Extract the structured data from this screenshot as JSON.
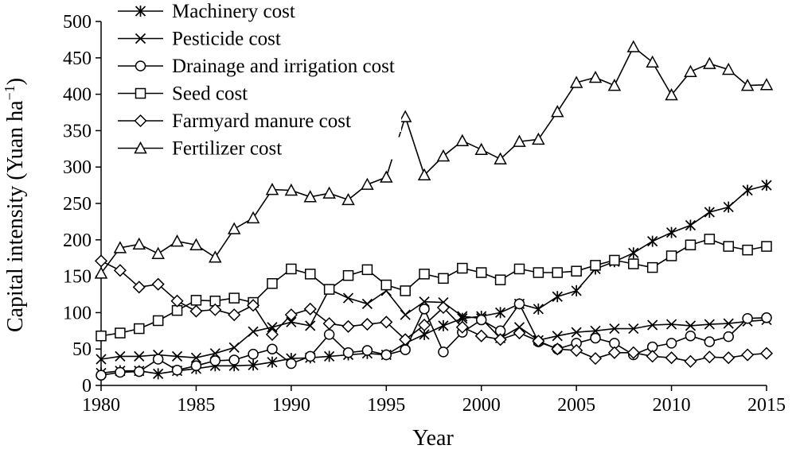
{
  "chart_data": {
    "type": "line",
    "title": "",
    "xlabel": "Year",
    "ylabel": "Capital intensity (Yuan ha",
    "ylabel_sup": "−1",
    "ylabel_close": ")",
    "xlim": [
      1980,
      2015
    ],
    "ylim": [
      0,
      500
    ],
    "xticks": [
      1980,
      1985,
      1990,
      1995,
      2000,
      2005,
      2010,
      2015
    ],
    "yticks": [
      0,
      50,
      100,
      150,
      200,
      250,
      300,
      350,
      400,
      450,
      500
    ],
    "grid": false,
    "legend_position": "top-left",
    "x": [
      1980,
      1981,
      1982,
      1983,
      1984,
      1985,
      1986,
      1987,
      1988,
      1989,
      1990,
      1991,
      1992,
      1993,
      1994,
      1995,
      1996,
      1997,
      1998,
      1999,
      2000,
      2001,
      2002,
      2003,
      2004,
      2005,
      2006,
      2007,
      2008,
      2009,
      2010,
      2011,
      2012,
      2013,
      2014,
      2015
    ],
    "series": [
      {
        "name": "Machinery cost",
        "marker": "asterisk",
        "values": [
          17,
          20,
          20,
          16,
          20,
          23,
          27,
          27,
          28,
          32,
          37,
          38,
          40,
          42,
          44,
          42,
          58,
          70,
          82,
          92,
          95,
          100,
          112,
          105,
          122,
          130,
          160,
          170,
          182,
          198,
          210,
          220,
          238,
          245,
          268,
          275
        ]
      },
      {
        "name": "Pesticide cost",
        "marker": "x",
        "values": [
          36,
          40,
          40,
          42,
          40,
          38,
          44,
          52,
          74,
          80,
          87,
          82,
          132,
          120,
          112,
          130,
          97,
          115,
          114,
          95,
          92,
          65,
          80,
          62,
          68,
          73,
          75,
          78,
          78,
          83,
          84,
          82,
          84,
          85,
          88,
          90
        ]
      },
      {
        "name": "Drainage and irrigation cost",
        "marker": "circle",
        "values": [
          14,
          18,
          19,
          36,
          21,
          27,
          34,
          35,
          43,
          50,
          30,
          40,
          70,
          45,
          48,
          42,
          49,
          105,
          46,
          73,
          90,
          75,
          112,
          60,
          50,
          58,
          65,
          58,
          42,
          53,
          58,
          68,
          60,
          67,
          92,
          93
        ]
      },
      {
        "name": "Seed cost",
        "marker": "square",
        "values": [
          68,
          72,
          78,
          89,
          103,
          117,
          116,
          120,
          114,
          140,
          160,
          153,
          132,
          151,
          159,
          138,
          130,
          153,
          147,
          161,
          155,
          145,
          160,
          155,
          155,
          157,
          165,
          172,
          167,
          162,
          178,
          193,
          201,
          191,
          186,
          191
        ]
      },
      {
        "name": "Farmyard manure cost",
        "marker": "diamond",
        "values": [
          171,
          158,
          135,
          139,
          116,
          102,
          104,
          97,
          110,
          70,
          97,
          105,
          85,
          81,
          84,
          87,
          63,
          83,
          107,
          80,
          68,
          63,
          72,
          61,
          50,
          48,
          37,
          45,
          45,
          40,
          38,
          33,
          39,
          38,
          42,
          44
        ]
      },
      {
        "name": "Fertilizer cost",
        "marker": "triangle",
        "values": [
          154,
          189,
          194,
          181,
          198,
          193,
          176,
          215,
          230,
          269,
          268,
          259,
          264,
          255,
          276,
          286,
          369,
          289,
          315,
          336,
          324,
          311,
          335,
          338,
          376,
          416,
          423,
          412,
          465,
          444,
          399,
          431,
          442,
          434,
          412,
          413
        ]
      }
    ]
  }
}
